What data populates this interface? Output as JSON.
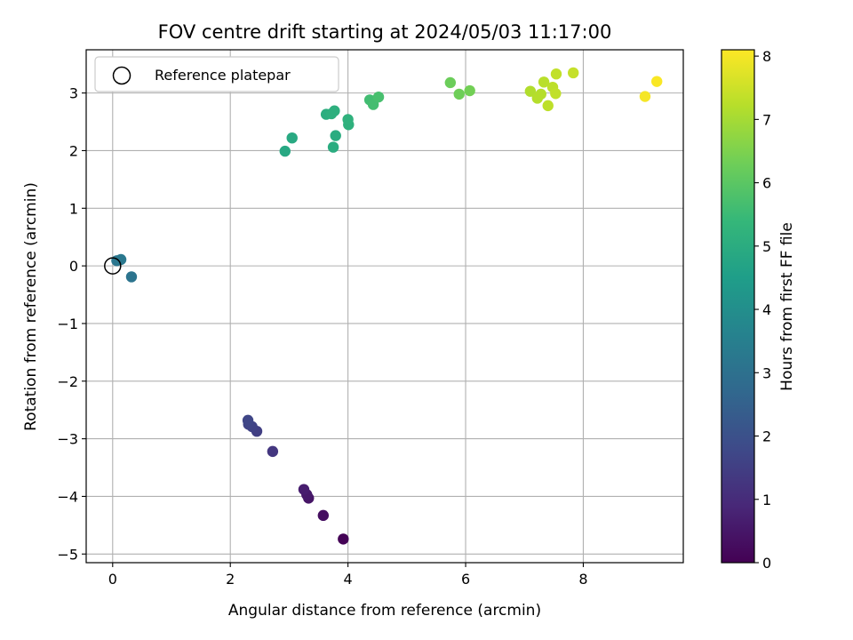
{
  "chart_data": {
    "type": "scatter",
    "title": "FOV centre drift starting at 2024/05/03 11:17:00",
    "xlabel": "Angular distance from reference (arcmin)",
    "ylabel": "Rotation from reference (arcmin)",
    "xlim": [
      -0.45,
      9.7
    ],
    "ylim": [
      -5.15,
      3.75
    ],
    "xticks": [
      0,
      2,
      4,
      6,
      8
    ],
    "yticks": [
      3,
      2,
      1,
      0,
      -1,
      -2,
      -3,
      -4,
      -5
    ],
    "grid": true,
    "colormap": "viridis",
    "colorbar": {
      "label": "Hours from first FF file",
      "ticks": [
        0,
        1,
        2,
        3,
        4,
        5,
        6,
        7,
        8
      ],
      "range": [
        0,
        8.1
      ]
    },
    "legend": {
      "position": "top-left",
      "entries": [
        "Reference platepar"
      ]
    },
    "reference_point": {
      "x": 0,
      "y": 0
    },
    "points": [
      {
        "x": 3.92,
        "y": -4.74,
        "hours": 0.05
      },
      {
        "x": 3.58,
        "y": -4.33,
        "hours": 0.3
      },
      {
        "x": 3.33,
        "y": -4.03,
        "hours": 0.45
      },
      {
        "x": 3.3,
        "y": -3.97,
        "hours": 0.55
      },
      {
        "x": 3.25,
        "y": -3.88,
        "hours": 0.65
      },
      {
        "x": 2.72,
        "y": -3.22,
        "hours": 1.3
      },
      {
        "x": 2.45,
        "y": -2.87,
        "hours": 1.5
      },
      {
        "x": 2.37,
        "y": -2.79,
        "hours": 1.6
      },
      {
        "x": 2.31,
        "y": -2.75,
        "hours": 1.65
      },
      {
        "x": 2.3,
        "y": -2.68,
        "hours": 1.7
      },
      {
        "x": 0.32,
        "y": -0.19,
        "hours": 3.1
      },
      {
        "x": 0.07,
        "y": 0.09,
        "hours": 3.2
      },
      {
        "x": 0.14,
        "y": 0.11,
        "hours": 3.25
      },
      {
        "x": 2.93,
        "y": 1.99,
        "hours": 4.85
      },
      {
        "x": 3.05,
        "y": 2.22,
        "hours": 4.9
      },
      {
        "x": 3.75,
        "y": 2.06,
        "hours": 5.0
      },
      {
        "x": 3.79,
        "y": 2.26,
        "hours": 5.0
      },
      {
        "x": 3.63,
        "y": 2.63,
        "hours": 5.05
      },
      {
        "x": 3.72,
        "y": 2.64,
        "hours": 5.1
      },
      {
        "x": 3.77,
        "y": 2.69,
        "hours": 5.1
      },
      {
        "x": 4.01,
        "y": 2.45,
        "hours": 5.15
      },
      {
        "x": 4.0,
        "y": 2.54,
        "hours": 5.2
      },
      {
        "x": 4.37,
        "y": 2.88,
        "hours": 5.6
      },
      {
        "x": 4.43,
        "y": 2.8,
        "hours": 5.65
      },
      {
        "x": 4.52,
        "y": 2.93,
        "hours": 5.7
      },
      {
        "x": 5.74,
        "y": 3.18,
        "hours": 6.25
      },
      {
        "x": 5.89,
        "y": 2.98,
        "hours": 6.3
      },
      {
        "x": 6.07,
        "y": 3.04,
        "hours": 6.35
      },
      {
        "x": 7.1,
        "y": 3.03,
        "hours": 7.15
      },
      {
        "x": 7.22,
        "y": 2.91,
        "hours": 7.2
      },
      {
        "x": 7.28,
        "y": 2.98,
        "hours": 7.2
      },
      {
        "x": 7.33,
        "y": 3.19,
        "hours": 7.25
      },
      {
        "x": 7.4,
        "y": 2.78,
        "hours": 7.3
      },
      {
        "x": 7.48,
        "y": 3.1,
        "hours": 7.3
      },
      {
        "x": 7.53,
        "y": 2.99,
        "hours": 7.35
      },
      {
        "x": 7.54,
        "y": 3.33,
        "hours": 7.35
      },
      {
        "x": 7.83,
        "y": 3.35,
        "hours": 7.4
      },
      {
        "x": 9.05,
        "y": 2.94,
        "hours": 8.0
      },
      {
        "x": 9.25,
        "y": 3.2,
        "hours": 8.05
      }
    ]
  }
}
